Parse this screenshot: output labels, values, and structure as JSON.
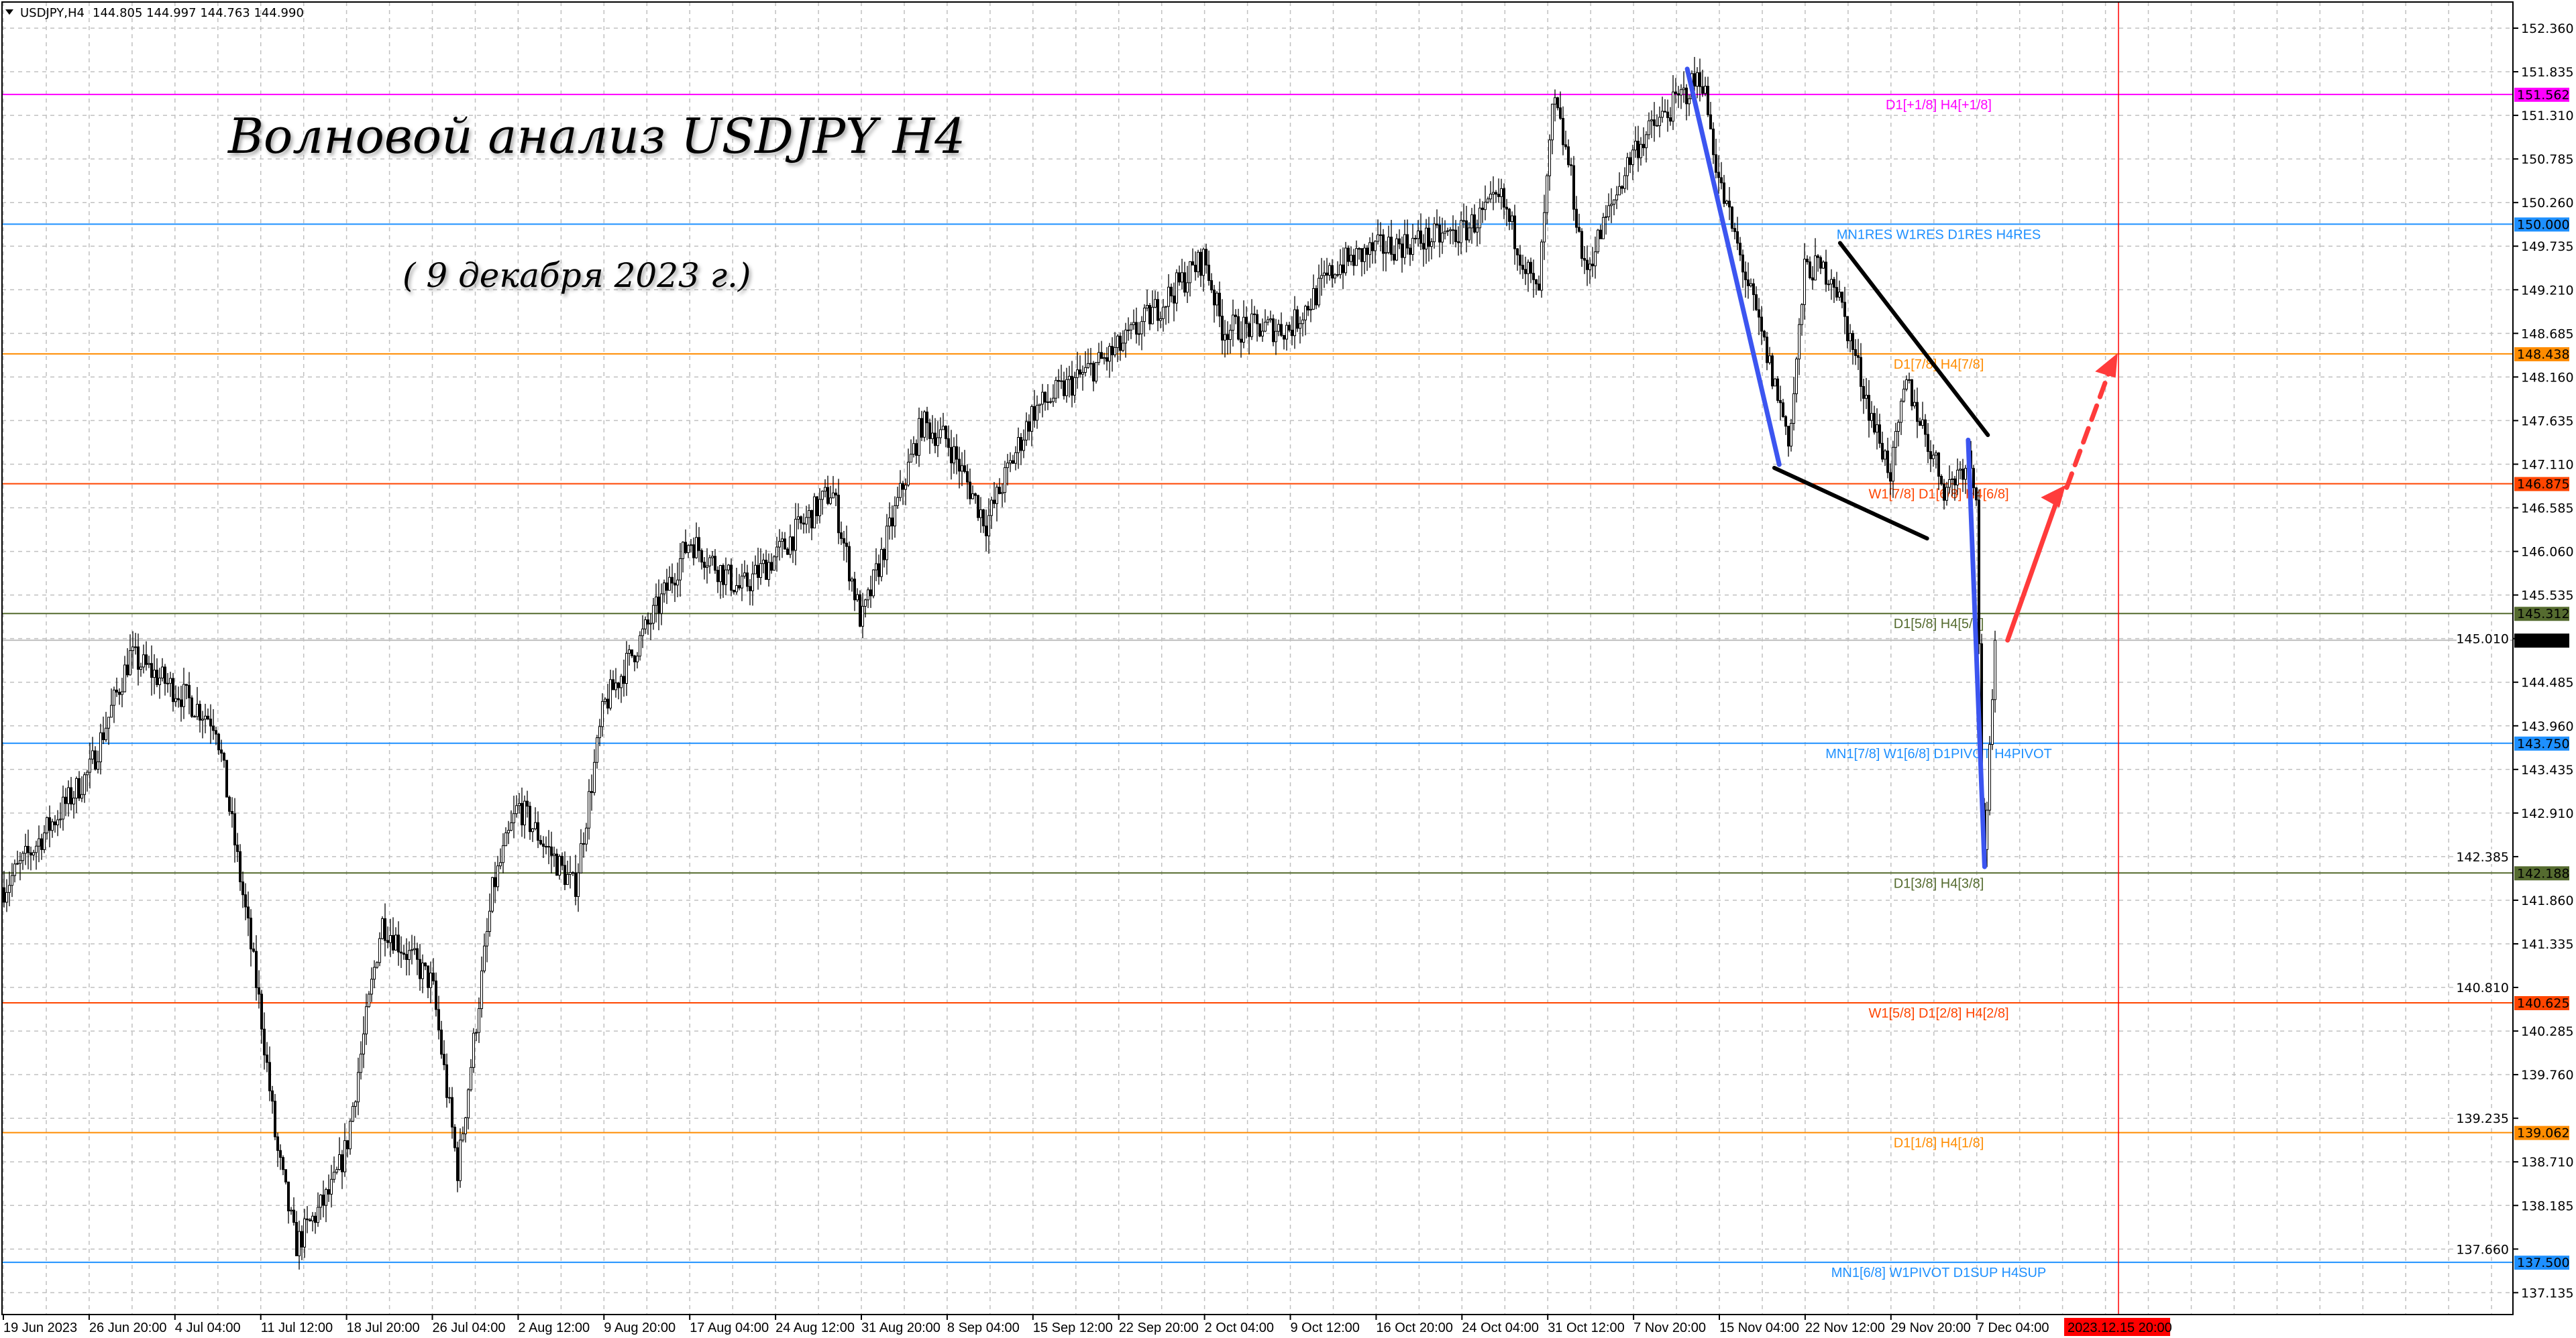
{
  "header": {
    "symbol": "USDJPY,H4",
    "ohlc": "144.805 144.997 144.763 144.990"
  },
  "annotations": {
    "title": "Волновой анализ USDJPY H4",
    "subtitle": "( 9 декабря 2023 г.)"
  },
  "levels": [
    {
      "price": "151.562",
      "label": "D1[+1/8] H4[+1/8]",
      "color": "#ff00ff"
    },
    {
      "price": "150.000",
      "label": "MN1RES W1RES D1RES H4RES",
      "color": "#1e90ff"
    },
    {
      "price": "148.438",
      "label": "D1[7/8] H4[7/8]",
      "color": "#ff8c00"
    },
    {
      "price": "146.875",
      "label": "W1[7/8] D1[6/8] H4[6/8]",
      "color": "#ff4500"
    },
    {
      "price": "145.312",
      "label": "D1[5/8] H4[5/8]",
      "color": "#556b2f"
    },
    {
      "price": "143.750",
      "label": "MN1[7/8] W1[6/8] D1PIVOT H4PIVOT",
      "color": "#1e90ff"
    },
    {
      "price": "142.188",
      "label": "D1[3/8] H4[3/8]",
      "color": "#556b2f"
    },
    {
      "price": "140.625",
      "label": "W1[5/8] D1[2/8] H4[2/8]",
      "color": "#ff4500"
    },
    {
      "price": "139.062",
      "label": "D1[1/8] H4[1/8]",
      "color": "#ff8c00"
    },
    {
      "price": "137.500",
      "label": "MN1[6/8] W1PIVOT D1SUP H4SUP",
      "color": "#1e90ff"
    }
  ],
  "current_price": {
    "value": "144.990",
    "color": "#000000"
  },
  "cursor_time": {
    "label": "2023.12.15 20:00",
    "color": "#ff0000"
  },
  "chart_data": {
    "type": "candlestick",
    "title": "",
    "ylim": [
      136.9,
      152.7
    ],
    "grid": true,
    "y_ticks": [
      "152.360",
      "151.835",
      "151.310",
      "150.785",
      "150.260",
      "149.735",
      "149.210",
      "148.685",
      "148.160",
      "147.635",
      "147.110",
      "146.585",
      "146.060",
      "145.535",
      "145.010",
      "144.485",
      "143.960",
      "143.435",
      "142.910",
      "142.385",
      "141.860",
      "141.335",
      "140.810",
      "140.285",
      "139.760",
      "139.235",
      "138.710",
      "138.185",
      "137.660",
      "137.135"
    ],
    "x_ticks": [
      "19 Jun 2023",
      "26 Jun 20:00",
      "4 Jul 04:00",
      "11 Jul 12:00",
      "18 Jul 20:00",
      "26 Jul 04:00",
      "2 Aug 12:00",
      "9 Aug 20:00",
      "17 Aug 04:00",
      "24 Aug 12:00",
      "31 Aug 20:00",
      "8 Sep 04:00",
      "15 Sep 12:00",
      "22 Sep 20:00",
      "2 Oct 04:00",
      "9 Oct 12:00",
      "16 Oct 20:00",
      "24 Oct 04:00",
      "31 Oct 12:00",
      "7 Nov 20:00",
      "15 Nov 04:00",
      "22 Nov 12:00",
      "29 Nov 20:00",
      "7 Dec 04:00"
    ],
    "price_path": [
      {
        "t": "2023-06-19 00:00",
        "p": 142.0
      },
      {
        "t": "2023-06-26 20:00",
        "p": 143.4
      },
      {
        "t": "2023-06-30 08:00",
        "p": 144.8
      },
      {
        "t": "2023-07-04 04:00",
        "p": 144.4
      },
      {
        "t": "2023-07-07 16:00",
        "p": 144.0
      },
      {
        "t": "2023-07-10 08:00",
        "p": 141.6
      },
      {
        "t": "2023-07-11 12:00",
        "p": 140.5
      },
      {
        "t": "2023-07-12 20:00",
        "p": 138.9
      },
      {
        "t": "2023-07-14 12:00",
        "p": 137.7
      },
      {
        "t": "2023-07-17 16:00",
        "p": 138.4
      },
      {
        "t": "2023-07-18 20:00",
        "p": 138.9
      },
      {
        "t": "2023-07-21 20:00",
        "p": 141.6
      },
      {
        "t": "2023-07-26 04:00",
        "p": 140.85
      },
      {
        "t": "2023-07-28 08:00",
        "p": 138.6
      },
      {
        "t": "2023-07-31 08:00",
        "p": 142.0
      },
      {
        "t": "2023-08-02 12:00",
        "p": 143.0
      },
      {
        "t": "2023-08-07 08:00",
        "p": 142.0
      },
      {
        "t": "2023-08-09 20:00",
        "p": 144.2
      },
      {
        "t": "2023-08-14 12:00",
        "p": 145.4
      },
      {
        "t": "2023-08-17 04:00",
        "p": 146.2
      },
      {
        "t": "2023-08-21 12:00",
        "p": 145.6
      },
      {
        "t": "2023-08-24 12:00",
        "p": 146.0
      },
      {
        "t": "2023-08-29 08:00",
        "p": 146.8
      },
      {
        "t": "2023-08-31 20:00",
        "p": 145.2
      },
      {
        "t": "2023-09-06 00:00",
        "p": 147.6
      },
      {
        "t": "2023-09-08 04:00",
        "p": 147.4
      },
      {
        "t": "2023-09-11 12:00",
        "p": 146.4
      },
      {
        "t": "2023-09-15 12:00",
        "p": 147.75
      },
      {
        "t": "2023-09-22 20:00",
        "p": 148.5
      },
      {
        "t": "2023-10-02 04:00",
        "p": 149.6
      },
      {
        "t": "2023-10-03 16:00",
        "p": 148.75
      },
      {
        "t": "2023-10-09 12:00",
        "p": 148.75
      },
      {
        "t": "2023-10-13 12:00",
        "p": 149.5
      },
      {
        "t": "2023-10-16 20:00",
        "p": 149.7
      },
      {
        "t": "2023-10-24 04:00",
        "p": 149.9
      },
      {
        "t": "2023-10-27 12:00",
        "p": 150.3
      },
      {
        "t": "2023-10-30 16:00",
        "p": 149.1
      },
      {
        "t": "2023-11-01 00:00",
        "p": 151.5
      },
      {
        "t": "2023-11-02 08:00",
        "p": 150.7
      },
      {
        "t": "2023-11-03 16:00",
        "p": 149.4
      },
      {
        "t": "2023-11-07 20:00",
        "p": 150.9
      },
      {
        "t": "2023-11-13 16:00",
        "p": 151.8
      },
      {
        "t": "2023-11-15 04:00",
        "p": 150.5
      },
      {
        "t": "2023-11-17 04:00",
        "p": 149.5
      },
      {
        "t": "2023-11-21 04:00",
        "p": 147.4
      },
      {
        "t": "2023-11-22 12:00",
        "p": 149.5
      },
      {
        "t": "2023-11-24 20:00",
        "p": 149.4
      },
      {
        "t": "2023-11-28 08:00",
        "p": 147.6
      },
      {
        "t": "2023-11-29 20:00",
        "p": 147.0
      },
      {
        "t": "2023-12-01 04:00",
        "p": 148.1
      },
      {
        "t": "2023-12-04 12:00",
        "p": 146.8
      },
      {
        "t": "2023-12-06 12:00",
        "p": 147.2
      },
      {
        "t": "2023-12-07 04:00",
        "p": 146.8
      },
      {
        "t": "2023-12-07 16:00",
        "p": 142.2
      },
      {
        "t": "2023-12-08 04:00",
        "p": 143.3
      },
      {
        "t": "2023-12-08 20:00",
        "p": 144.99
      }
    ]
  }
}
